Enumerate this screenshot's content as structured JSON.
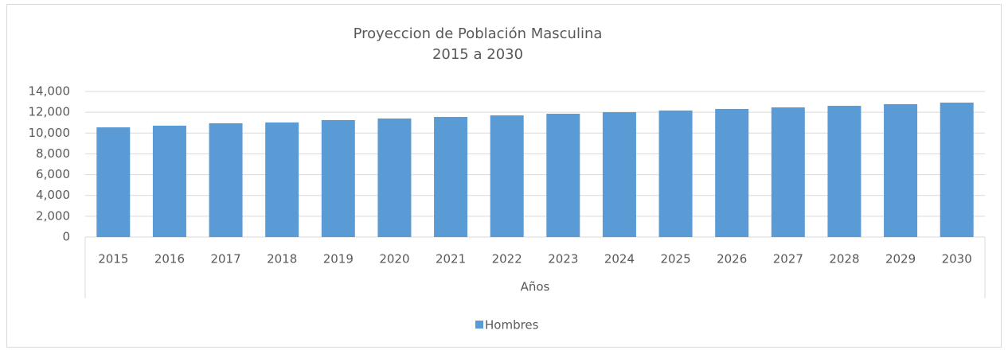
{
  "chart_data": {
    "type": "bar",
    "title": "Proyeccion de Población Masculina",
    "subtitle": "2015 a 2030",
    "x_label": "Años",
    "categories": [
      "2015",
      "2016",
      "2017",
      "2018",
      "2019",
      "2020",
      "2021",
      "2022",
      "2023",
      "2024",
      "2025",
      "2026",
      "2027",
      "2028",
      "2029",
      "2030"
    ],
    "series": [
      {
        "name": "Hombres",
        "color": "#5b9bd5",
        "values": [
          10550,
          10710,
          10940,
          11020,
          11250,
          11400,
          11550,
          11700,
          11860,
          12010,
          12170,
          12320,
          12470,
          12620,
          12780,
          12930
        ]
      }
    ],
    "ylim": [
      0,
      14000
    ],
    "yticks": [
      0,
      {
        "value": 2000,
        "label": "2,000"
      },
      {
        "value": 4000,
        "label": "4,000"
      },
      {
        "value": 6000,
        "label": "6,000"
      },
      {
        "value": 8000,
        "label": "8,000"
      },
      {
        "value": 10000,
        "label": "10,000"
      },
      {
        "value": 12000,
        "label": "12,000"
      },
      {
        "value": 14000,
        "label": "14,000"
      }
    ],
    "grid": true,
    "legend": "bottom"
  }
}
